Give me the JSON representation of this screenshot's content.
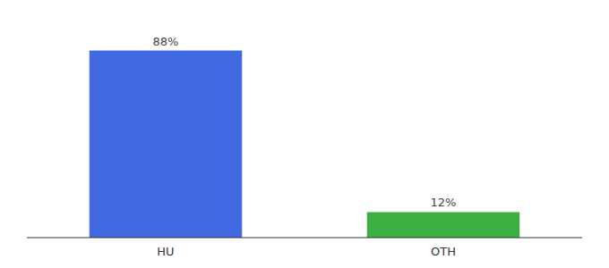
{
  "chart_data": {
    "type": "bar",
    "categories": [
      "HU",
      "OTH"
    ],
    "values": [
      88,
      12
    ],
    "value_labels": [
      "88%",
      "12%"
    ],
    "colors": [
      "#4169e1",
      "#3cb043"
    ],
    "ylim": [
      0,
      100
    ],
    "data_labels": true,
    "tick_labels": "x",
    "grid": false
  }
}
